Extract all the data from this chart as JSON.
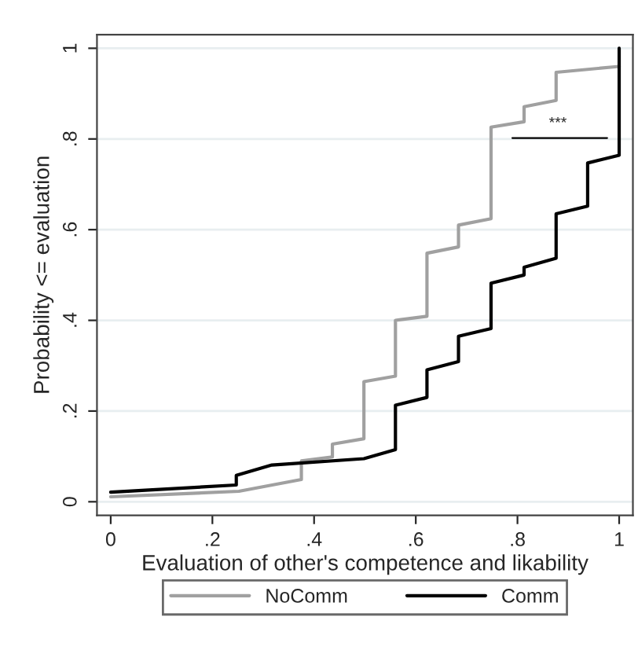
{
  "chart_data": {
    "type": "line",
    "xlabel": "Evaluation of other's competence and likability",
    "ylabel": "Probability <= evaluation",
    "series": [
      {
        "name": "NoComm",
        "color": "#a0a0a0",
        "x": [
          0,
          0.252,
          0.375,
          0.375,
          0.436,
          0.436,
          0.498,
          0.498,
          0.56,
          0.56,
          0.622,
          0.622,
          0.684,
          0.684,
          0.748,
          0.748,
          0.813,
          0.813,
          0.876,
          0.876,
          1.0
        ],
        "values": [
          0.011,
          0.023,
          0.049,
          0.09,
          0.099,
          0.127,
          0.139,
          0.265,
          0.277,
          0.4,
          0.409,
          0.548,
          0.562,
          0.61,
          0.624,
          0.826,
          0.838,
          0.871,
          0.885,
          0.947,
          0.96
        ]
      },
      {
        "name": "Comm",
        "color": "#000000",
        "x": [
          0,
          0.247,
          0.247,
          0.317,
          0.498,
          0.56,
          0.56,
          0.622,
          0.622,
          0.684,
          0.684,
          0.748,
          0.748,
          0.813,
          0.813,
          0.876,
          0.876,
          0.938,
          0.938,
          1.0,
          1.0
        ],
        "values": [
          0.021,
          0.037,
          0.058,
          0.081,
          0.095,
          0.115,
          0.213,
          0.23,
          0.291,
          0.309,
          0.365,
          0.382,
          0.482,
          0.5,
          0.517,
          0.537,
          0.635,
          0.652,
          0.747,
          0.764,
          1.0
        ]
      }
    ],
    "annotations": [
      "***"
    ],
    "xlim": [
      -0.027,
      1.027
    ],
    "ylim": [
      -0.03,
      1.03
    ],
    "xticks": [
      0,
      {
        "value": 0.2,
        "label": ".2"
      },
      {
        "value": 0.4,
        "label": ".4"
      },
      {
        "value": 0.6,
        "label": ".6"
      },
      {
        "value": 0.8,
        "label": ".8"
      },
      1
    ],
    "yticks": [
      0,
      {
        "value": 0.2,
        "label": ".2"
      },
      {
        "value": 0.4,
        "label": ".4"
      },
      {
        "value": 0.6,
        "label": ".6"
      },
      {
        "value": 0.8,
        "label": ".8"
      },
      1
    ],
    "grid": "y",
    "legend": "bottom",
    "marker": "none",
    "line_style": "solid"
  }
}
